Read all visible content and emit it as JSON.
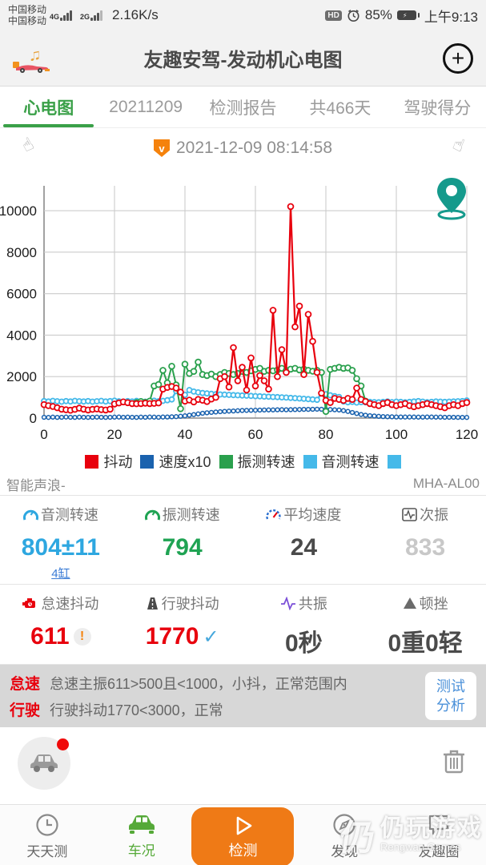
{
  "status_bar": {
    "carrier1": "中国移动",
    "carrier2": "中国移动",
    "net1": "4G",
    "net2": "2G",
    "speed": "2.16K/s",
    "hd": "HD",
    "battery_pct": "85%",
    "time": "上午9:13"
  },
  "header": {
    "title": "友趣安驾-发动机心电图",
    "add_label": "+"
  },
  "tabs": [
    {
      "label": "心电图",
      "active": true
    },
    {
      "label": "20211209",
      "active": false
    },
    {
      "label": "检测报告",
      "active": false
    },
    {
      "label": "共466天",
      "active": false
    },
    {
      "label": "驾驶得分",
      "active": false
    }
  ],
  "date_bar": {
    "badge": "v",
    "datetime": "2021-12-09 08:14:58",
    "hand": "☝"
  },
  "chart_data": {
    "type": "line",
    "title": "",
    "xlabel": "",
    "ylabel": "",
    "xlim": [
      0,
      120
    ],
    "ylim": [
      0,
      11200
    ],
    "x_ticks": [
      0,
      20,
      40,
      60,
      80,
      100,
      120
    ],
    "y_ticks": [
      0,
      2000,
      4000,
      6000,
      8000,
      10000
    ],
    "grid": true,
    "legend_position": "bottom",
    "extra_swatch_color": "#45b9e9",
    "series": [
      {
        "name": "抖动",
        "color": "#e8000d",
        "x_start": 0,
        "x_step": 1.25,
        "values": [
          650,
          600,
          560,
          500,
          430,
          400,
          380,
          420,
          480,
          430,
          390,
          420,
          440,
          410,
          390,
          430,
          680,
          730,
          780,
          740,
          700,
          690,
          700,
          720,
          700,
          710,
          730,
          1400,
          1480,
          1520,
          1450,
          1250,
          820,
          870,
          780,
          900,
          860,
          800,
          920,
          1000,
          1900,
          2000,
          1500,
          3400,
          1800,
          2450,
          1350,
          2900,
          1550,
          2050,
          1800,
          1400,
          5200,
          2000,
          3300,
          2200,
          10200,
          4400,
          5400,
          2100,
          5000,
          3700,
          2200,
          1200,
          850,
          750,
          950,
          900,
          850,
          950,
          900,
          1450,
          900,
          800,
          700,
          650,
          600,
          700,
          750,
          650,
          600,
          650,
          700,
          600,
          550,
          600,
          650,
          700,
          650,
          600,
          550,
          500,
          600,
          650,
          600,
          700,
          750
        ]
      },
      {
        "name": "速度x10",
        "color": "#1a62ae",
        "x_start": 0,
        "x_step": 1.25,
        "values": [
          40,
          30,
          45,
          35,
          40,
          50,
          40,
          35,
          45,
          40,
          35,
          40,
          45,
          40,
          35,
          40,
          45,
          50,
          40,
          45,
          40,
          35,
          45,
          40,
          50,
          45,
          40,
          50,
          55,
          60,
          70,
          90,
          110,
          140,
          170,
          200,
          230,
          255,
          275,
          295,
          310,
          325,
          335,
          345,
          355,
          365,
          370,
          375,
          380,
          385,
          390,
          395,
          395,
          400,
          405,
          400,
          405,
          410,
          415,
          420,
          420,
          425,
          430,
          425,
          420,
          415,
          400,
          390,
          360,
          320,
          270,
          220,
          175,
          140,
          115,
          100,
          85,
          75,
          65,
          60,
          55,
          55,
          50,
          50,
          50,
          45,
          45,
          50,
          50,
          45,
          45,
          40,
          40,
          40,
          35,
          35,
          30
        ]
      },
      {
        "name": "振测转速",
        "color": "#2aa04d",
        "x_start": 26.25,
        "x_step": 1.25,
        "values": [
          750,
          800,
          760,
          820,
          1550,
          1620,
          2300,
          1700,
          2500,
          1600,
          450,
          2600,
          2150,
          2250,
          2700,
          2100,
          2050,
          2120,
          2000,
          2100,
          2200,
          2150,
          2100,
          2150,
          2250,
          2200,
          2280,
          2350,
          2400,
          2250,
          2300,
          2280,
          2320,
          2400,
          2300,
          2360,
          2400,
          2320,
          2360,
          2300,
          2260,
          2300,
          2200,
          320,
          2350,
          2400,
          2450,
          2400,
          2420,
          2300,
          1900,
          1550,
          820
        ]
      },
      {
        "name": "音测转速",
        "color": "#45b9e9",
        "x_start": 0,
        "x_step": 1.25,
        "values": [
          820,
          800,
          830,
          810,
          790,
          820,
          800,
          830,
          810,
          800,
          820,
          790,
          810,
          830,
          800,
          820,
          840,
          810,
          790,
          820,
          800,
          830,
          810,
          790,
          820,
          840,
          810,
          830,
          860,
          900,
          1300,
          1250,
          1120,
          1350,
          1280,
          1240,
          1210,
          1190,
          1170,
          1150,
          1140,
          1130,
          1120,
          1110,
          1100,
          1090,
          1080,
          1070,
          1060,
          1050,
          1040,
          1030,
          1020,
          1010,
          1000,
          990,
          975,
          960,
          945,
          930,
          915,
          900,
          880,
          1200,
          1150,
          1100,
          1060,
          1020,
          800,
          760,
          780,
          750,
          770,
          760,
          780,
          770,
          760,
          780,
          800,
          770,
          790,
          780,
          760,
          780,
          800,
          820,
          790,
          770,
          780,
          800,
          790,
          780,
          790,
          800,
          810,
          820,
          850
        ]
      }
    ]
  },
  "meta": {
    "left": "智能声浪-",
    "right": "MHA-AL00"
  },
  "stats": {
    "cells1": [
      {
        "label": "音测转速",
        "value": "804±11",
        "color": "#2ea7e0",
        "extra": "4缸"
      },
      {
        "label": "振测转速",
        "value": "794",
        "color": "#1fa353",
        "extra": ""
      },
      {
        "label": "平均速度",
        "value": "24",
        "color": "#4a4a4a",
        "extra": ""
      },
      {
        "label": "次振",
        "value": "833",
        "color": "#c8c8c8",
        "extra": ""
      }
    ],
    "cells2": [
      {
        "label": "怠速抖动",
        "value": "611",
        "color": "#e8000d",
        "badge": "!"
      },
      {
        "label": "行驶抖动",
        "value": "1770",
        "color": "#e8000d",
        "badge": "✓"
      },
      {
        "label": "共振",
        "value": "0秒",
        "color": "#4a4a4a",
        "badge": ""
      },
      {
        "label": "顿挫",
        "value": "0重0轻",
        "color": "#4a4a4a",
        "badge": ""
      }
    ]
  },
  "analysis": {
    "rows": [
      {
        "tag": "怠速",
        "text": "怠速主振611>500且<1000，小抖，正常范围内"
      },
      {
        "tag": "行驶",
        "text": "行驶抖动1770<3000，正常"
      }
    ],
    "button_line1": "测试",
    "button_line2": "分析"
  },
  "bottom_nav": [
    {
      "label": "天天测"
    },
    {
      "label": "车况"
    },
    {
      "label": "检测"
    },
    {
      "label": "发现"
    },
    {
      "label": "友趣圈"
    }
  ],
  "watermark": {
    "mark": "仍",
    "title": "仍玩游戏",
    "subtitle": "Rengwan Games"
  }
}
